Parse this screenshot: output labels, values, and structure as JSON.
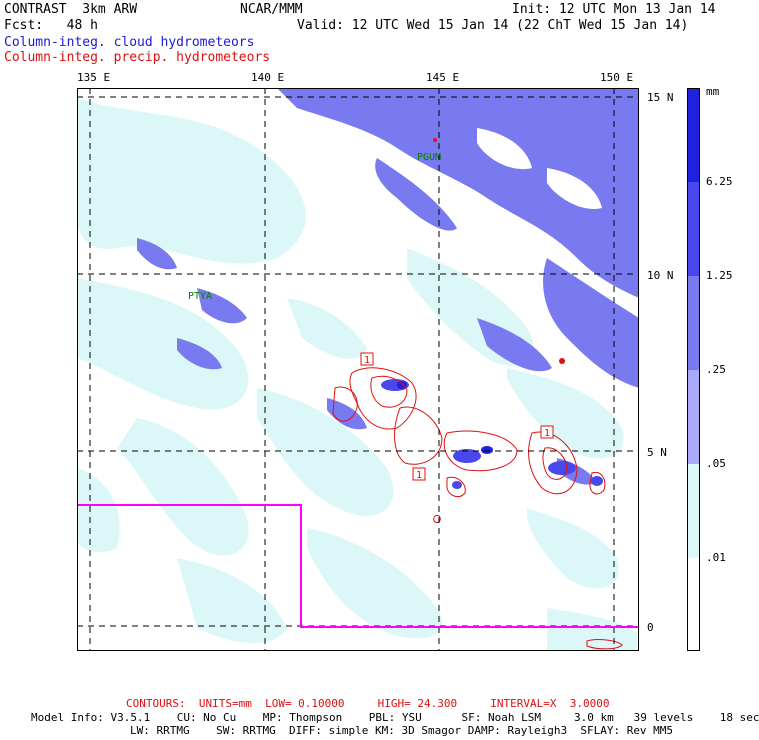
{
  "header": {
    "model": "CONTRAST  3km ARW",
    "org": "NCAR/MMM",
    "init": "Init: 12 UTC Mon 13 Jan 14",
    "fcst": "Fcst:   48 h",
    "valid": "Valid: 12 UTC Wed 15 Jan 14 (22 ChT Wed 15 Jan 14)",
    "field1": "Column-integ. cloud hydrometeors",
    "field2": "Column-integ. precip. hydrometeors"
  },
  "map": {
    "lon_labels": [
      "135 E",
      "140 E",
      "145 E",
      "150 E"
    ],
    "lat_labels": [
      "15 N",
      "10 N",
      "5 N",
      "0"
    ],
    "stations": [
      "PGUM",
      "PTYA"
    ],
    "contour_label": "1"
  },
  "colorbar": {
    "unit": "mm",
    "levels": [
      "6.25",
      "1.25",
      ".25",
      ".05",
      ".01"
    ],
    "colors": [
      "#2020e0",
      "#4848ec",
      "#7a7af0",
      "#a9a9f8",
      "#dcf7f8",
      "#ffffff"
    ]
  },
  "footer": {
    "contours": "CONTOURS:  UNITS=mm  LOW= 0.10000     HIGH= 24.300     INTERVAL=X  3.0000",
    "model_info_1": "Model Info: V3.5.1    CU: No Cu    MP: Thompson    PBL: YSU      SF: Noah LSM     3.0 km   39 levels    18 sec",
    "model_info_2": "LW: RRTMG    SW: RRTMG  DIFF: simple KM: 3D Smagor DAMP: Rayleigh3  SFLAY: Rev MM5"
  }
}
